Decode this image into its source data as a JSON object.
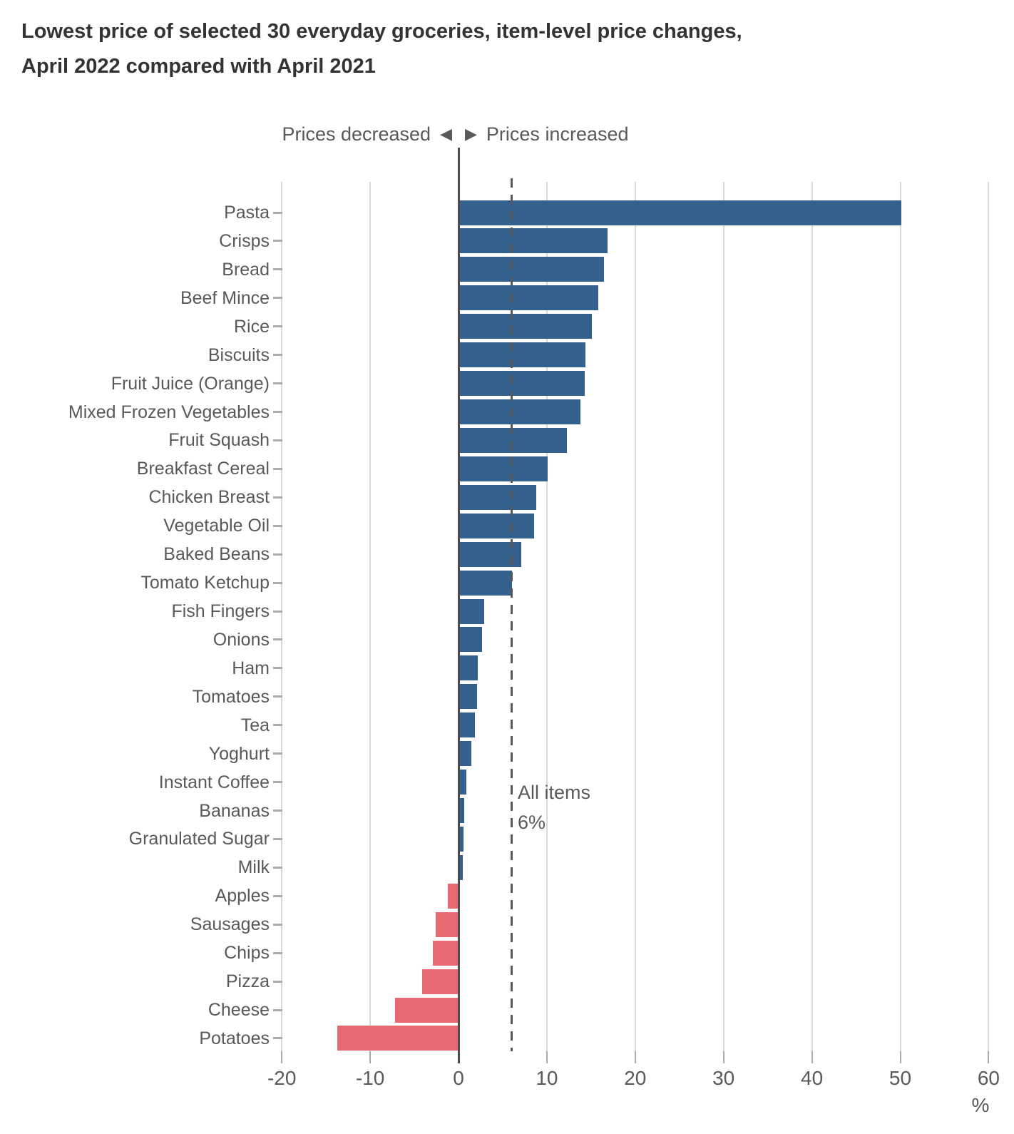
{
  "title": {
    "line1": "Lowest price of selected 30 everyday groceries, item-level price changes,",
    "line2": "April 2022 compared with April 2021"
  },
  "direction_legend": {
    "decreased_label": "Prices decreased",
    "increased_label": "Prices increased"
  },
  "icons": {
    "left_triangle": "◀",
    "right_triangle": "▶"
  },
  "reference_annotation": {
    "line1": "All items",
    "line2": "6%"
  },
  "x_axis": {
    "ticks": [
      -20,
      -10,
      0,
      10,
      20,
      30,
      40,
      50,
      60
    ],
    "unit_label": "%",
    "min": -20,
    "max": 60
  },
  "colors": {
    "increase_bar": "#35618e",
    "decrease_bar": "#e5696e",
    "gridline": "#d9d9d9",
    "zero_line": "#4d4d4d",
    "reference_line": "#595959",
    "axis_text": "#595959",
    "title_text": "#333333"
  },
  "chart_data": {
    "type": "bar",
    "orientation": "horizontal",
    "title": "Lowest price of selected 30 everyday groceries, item-level price changes, April 2022 compared with April 2021",
    "xlabel": "%",
    "xlim": [
      -20,
      60
    ],
    "grid": true,
    "legend": "none",
    "reference_line": {
      "label": "All items",
      "value": 6
    },
    "categories": [
      "Pasta",
      "Crisps",
      "Bread",
      "Beef Mince",
      "Rice",
      "Biscuits",
      "Fruit Juice (Orange)",
      "Mixed Frozen Vegetables",
      "Fruit Squash",
      "Breakfast Cereal",
      "Chicken Breast",
      "Vegetable Oil",
      "Baked Beans",
      "Tomato Ketchup",
      "Fish Fingers",
      "Onions",
      "Ham",
      "Tomatoes",
      "Tea",
      "Yoghurt",
      "Instant Coffee",
      "Bananas",
      "Granulated Sugar",
      "Milk",
      "Apples",
      "Sausages",
      "Chips",
      "Pizza",
      "Cheese",
      "Potatoes"
    ],
    "values": [
      50,
      16.8,
      16.4,
      15.7,
      15,
      14.3,
      14.2,
      13.7,
      12.2,
      10,
      8.7,
      8.5,
      7,
      6,
      2.8,
      2.6,
      2.1,
      2,
      1.8,
      1.4,
      0.8,
      0.6,
      0.5,
      0.4,
      -1.2,
      -2.6,
      -2.9,
      -4.1,
      -7.2,
      -13.7
    ]
  }
}
